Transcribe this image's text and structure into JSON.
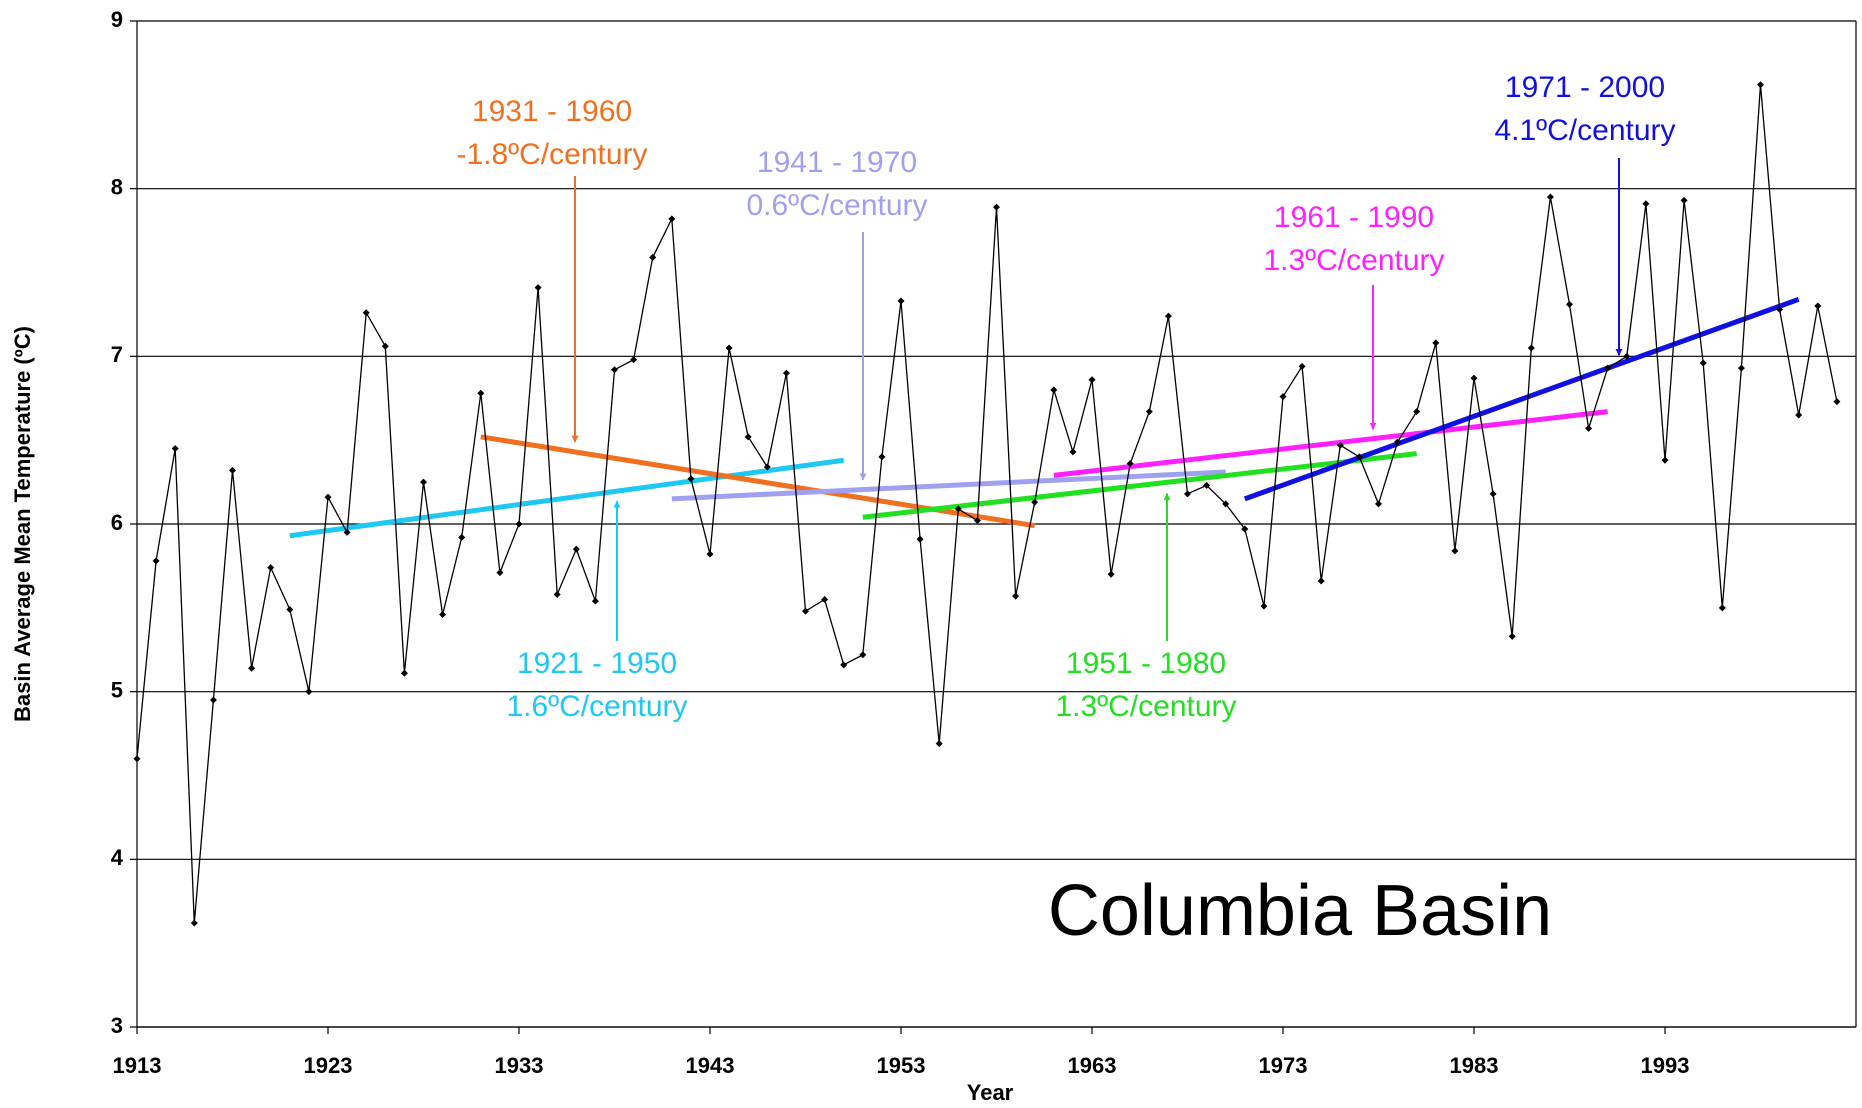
{
  "chart_data": {
    "type": "line",
    "annotation": "Columbia Basin",
    "x_label": "Year",
    "y_label": "Basin Average Mean Temperature (ºC)",
    "x": [
      1913,
      1914,
      1915,
      1916,
      1917,
      1918,
      1919,
      1920,
      1921,
      1922,
      1923,
      1924,
      1925,
      1926,
      1927,
      1928,
      1929,
      1930,
      1931,
      1932,
      1933,
      1934,
      1935,
      1936,
      1937,
      1938,
      1939,
      1940,
      1941,
      1942,
      1943,
      1944,
      1945,
      1946,
      1947,
      1948,
      1949,
      1950,
      1951,
      1952,
      1953,
      1954,
      1955,
      1956,
      1957,
      1958,
      1959,
      1960,
      1961,
      1962,
      1963,
      1964,
      1965,
      1966,
      1967,
      1968,
      1969,
      1970,
      1971,
      1972,
      1973,
      1974,
      1975,
      1976,
      1977,
      1978,
      1979,
      1980,
      1981,
      1982,
      1983,
      1984,
      1985,
      1986,
      1987,
      1988,
      1989,
      1990,
      1991,
      1992,
      1993,
      1994,
      1995,
      1996,
      1997,
      1998,
      1999,
      2000,
      2001,
      2002
    ],
    "series": [
      {
        "color": "#000000",
        "values": [
          4.6,
          5.78,
          6.45,
          3.62,
          4.95,
          6.32,
          5.14,
          5.74,
          5.49,
          5.0,
          6.16,
          5.95,
          7.26,
          7.06,
          5.11,
          6.25,
          5.46,
          5.92,
          6.78,
          5.71,
          6.0,
          7.41,
          5.58,
          5.85,
          5.54,
          6.92,
          6.98,
          7.59,
          7.82,
          6.27,
          5.82,
          7.05,
          6.52,
          6.34,
          6.9,
          5.48,
          5.55,
          5.16,
          5.22,
          6.4,
          7.33,
          5.91,
          4.69,
          6.09,
          6.02,
          7.89,
          5.57,
          6.13,
          6.8,
          6.43,
          6.86,
          5.7,
          6.36,
          6.67,
          7.24,
          6.18,
          6.23,
          6.12,
          5.97,
          5.51,
          6.76,
          6.94,
          5.66,
          6.47,
          6.4,
          6.12,
          6.49,
          6.67,
          7.08,
          5.84,
          6.87,
          6.18,
          5.33,
          7.05,
          7.95,
          7.31,
          6.57,
          6.93,
          7.0,
          7.91,
          6.38,
          7.93,
          6.96,
          5.5,
          6.93,
          8.62,
          7.28,
          6.65,
          7.3,
          6.73
        ]
      }
    ],
    "trends": [
      {
        "label": "1921 - 1950",
        "rate": "1.6ºC/century",
        "color": "#1ec8f0",
        "x": [
          1921,
          1950
        ],
        "values": [
          5.93,
          6.38
        ]
      },
      {
        "label": "1931 - 1960",
        "rate": "-1.8ºC/century",
        "color": "#f07020",
        "x": [
          1931,
          1960
        ],
        "values": [
          6.52,
          5.99
        ]
      },
      {
        "label": "1941 - 1970",
        "rate": "0.6ºC/century",
        "color": "#a0a0f0",
        "x": [
          1941,
          1970
        ],
        "values": [
          6.15,
          6.31
        ]
      },
      {
        "label": "1951 - 1980",
        "rate": "1.3ºC/century",
        "color": "#20e020",
        "x": [
          1951,
          1980
        ],
        "values": [
          6.04,
          6.42
        ]
      },
      {
        "label": "1961 - 1990",
        "rate": "1.3ºC/century",
        "color": "#ff20ff",
        "x": [
          1961,
          1990
        ],
        "values": [
          6.29,
          6.67
        ]
      },
      {
        "label": "1971 - 2000",
        "rate": "4.1ºC/century",
        "color": "#1010e0",
        "x": [
          1971,
          2000
        ],
        "values": [
          6.15,
          7.34
        ]
      }
    ],
    "xlim": [
      1913,
      2003
    ],
    "xticks": [
      1913,
      1923,
      1933,
      1943,
      1953,
      1963,
      1973,
      1983,
      1993
    ],
    "ylim": [
      3,
      9
    ],
    "yticks": [
      3,
      4,
      5,
      6,
      7,
      8,
      9
    ],
    "grid": true
  }
}
